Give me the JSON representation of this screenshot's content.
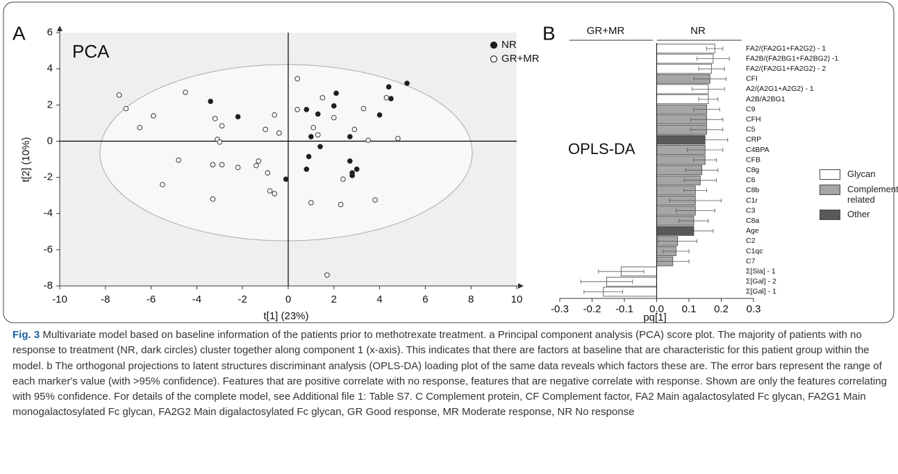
{
  "chart_data": [
    {
      "type": "scatter",
      "panel_label": "A",
      "annotation": "PCA",
      "xlabel": "t[1] (23%)",
      "ylabel": "t[2] (10%)",
      "xlim": [
        -10,
        10
      ],
      "xticks": [
        -10,
        -8,
        -6,
        -4,
        -2,
        0,
        2,
        4,
        6,
        8,
        10
      ],
      "ylim": [
        -8,
        6
      ],
      "yticks": [
        -8,
        -6,
        -4,
        -2,
        0,
        2,
        4,
        6
      ],
      "legend": "upper right",
      "series": [
        {
          "name": "NR",
          "color": "#1f1f1f",
          "filled": true,
          "x": [
            -3.4,
            -2.2,
            0.8,
            1.3,
            2.0,
            2.1,
            1.0,
            1.4,
            0.9,
            0.8,
            -0.1,
            2.7,
            2.7,
            2.8,
            2.8,
            3.0,
            4.0,
            4.4,
            4.5,
            5.2
          ],
          "values": [
            2.2,
            1.35,
            1.75,
            1.5,
            1.95,
            2.65,
            0.25,
            -0.3,
            -0.85,
            -1.55,
            -2.1,
            0.25,
            -1.1,
            -1.75,
            -1.9,
            -1.55,
            1.45,
            3.0,
            2.35,
            3.2
          ]
        },
        {
          "name": "GR+MR",
          "color": "#333333",
          "filled": false,
          "x": [
            -7.4,
            -7.1,
            -6.5,
            -5.9,
            -4.5,
            -3.2,
            -2.9,
            -3.1,
            -3.0,
            -1.0,
            -0.6,
            -0.4,
            0.4,
            0.4,
            1.1,
            1.3,
            1.5,
            2.0,
            2.9,
            3.3,
            3.5,
            4.3,
            4.8,
            -4.8,
            -5.5,
            -3.3,
            -2.9,
            -2.2,
            -1.4,
            -1.3,
            -0.8,
            -0.6,
            -0.9,
            -3.3,
            1.0,
            2.4,
            2.3,
            3.8,
            1.7
          ],
          "values": [
            2.55,
            1.8,
            0.75,
            1.4,
            2.7,
            1.25,
            0.85,
            0.1,
            -0.05,
            0.65,
            1.45,
            0.45,
            3.45,
            1.75,
            0.75,
            0.35,
            2.4,
            1.3,
            0.65,
            1.8,
            0.05,
            2.4,
            0.15,
            -1.05,
            -2.4,
            -1.3,
            -1.3,
            -1.45,
            -1.35,
            -1.1,
            -2.75,
            -2.9,
            -1.75,
            -3.2,
            -3.4,
            -2.1,
            -3.5,
            -3.25,
            -7.4
          ]
        }
      ]
    },
    {
      "type": "hbar",
      "panel_label": "B",
      "annotation": "OPLS-DA",
      "xlabel": "pq[1]",
      "group_labels": [
        "GR+MR",
        "NR"
      ],
      "xlim": [
        -0.3,
        0.3
      ],
      "xticks": [
        -0.3,
        -0.2,
        -0.1,
        {
          "value": 0,
          "label": "0.0"
        },
        0.1,
        0.2,
        0.3
      ],
      "categories": [
        "FA2/(FA2G1+FA2G2) - 1",
        "FA2B/(FA2BG1+FA2BG2) -1",
        "FA2/(FA2G1+FA2G2) - 2",
        "CFI",
        "A2/(A2G1+A2G2) - 1",
        "A2B/A2BG1",
        "C9",
        "CFH",
        "C5",
        "CRP",
        "C4BPA",
        "CFB",
        "C8g",
        "C6",
        "C8b",
        "C1r",
        "C3",
        "C8a",
        "Age",
        "C2",
        "C1qc",
        "C7",
        "Σ[Sia] - 1",
        "Σ[Gal] - 2",
        "Σ[Gal] - 1"
      ],
      "series": [
        {
          "name": "Glycan",
          "color": "#ffffff",
          "values": [
            0.18,
            0.175,
            0.17,
            null,
            0.16,
            0.16,
            null,
            null,
            null,
            null,
            null,
            null,
            null,
            null,
            null,
            null,
            null,
            null,
            null,
            null,
            null,
            null,
            -0.11,
            -0.155,
            -0.165
          ],
          "errors": [
            0.025,
            0.05,
            0.04,
            null,
            0.05,
            0.03,
            null,
            null,
            null,
            null,
            null,
            null,
            null,
            null,
            null,
            null,
            null,
            null,
            null,
            null,
            null,
            null,
            0.07,
            0.08,
            0.06
          ]
        },
        {
          "name": "Complement related",
          "color": "#a6a6a6",
          "values": [
            null,
            null,
            null,
            0.165,
            null,
            null,
            0.155,
            0.155,
            0.155,
            null,
            0.15,
            0.15,
            0.14,
            0.135,
            0.12,
            0.12,
            0.12,
            0.115,
            null,
            0.065,
            0.06,
            0.05,
            null,
            null,
            null
          ],
          "errors": [
            null,
            null,
            null,
            0.05,
            null,
            null,
            0.04,
            0.05,
            0.05,
            null,
            0.055,
            0.035,
            0.05,
            0.05,
            0.035,
            0.08,
            0.06,
            0.045,
            null,
            0.06,
            0.04,
            0.05,
            null,
            null,
            null
          ]
        },
        {
          "name": "Other",
          "color": "#595959",
          "values": [
            null,
            null,
            null,
            null,
            null,
            null,
            null,
            null,
            null,
            0.15,
            null,
            null,
            null,
            null,
            null,
            null,
            null,
            null,
            0.115,
            null,
            null,
            null,
            null,
            null,
            null
          ],
          "errors": [
            null,
            null,
            null,
            null,
            null,
            null,
            null,
            null,
            null,
            0.07,
            null,
            null,
            null,
            null,
            null,
            null,
            null,
            null,
            0.06,
            null,
            null,
            null,
            null,
            null,
            null
          ]
        }
      ]
    }
  ],
  "caption": {
    "label": "Fig. 3",
    "text": "Multivariate model based on baseline information of the patients prior to methotrexate treatment. a Principal component analysis (PCA) score plot. The majority of patients with no response to treatment (NR, dark circles) cluster together along component 1 (x-axis). This indicates that there are factors at baseline that are characteristic for this patient group within the model. b The orthogonal projections to latent structures discriminant analysis (OPLS-DA) loading plot of the same data reveals which factors these are. The error bars represent the range of each marker's value (with >95% confidence). Features that are positive correlate with no response, features that are negative correlate with response. Shown are only the features correlating with 95% confidence. For details of the complete model, see Additional file 1: Table S7. C Complement protein, CF Complement factor, FA2 Main agalactosylated Fc glycan, FA2G1 Main monogalactosylated Fc glycan, FA2G2 Main digalactosylated Fc glycan, GR Good response, MR Moderate response, NR No response"
  }
}
